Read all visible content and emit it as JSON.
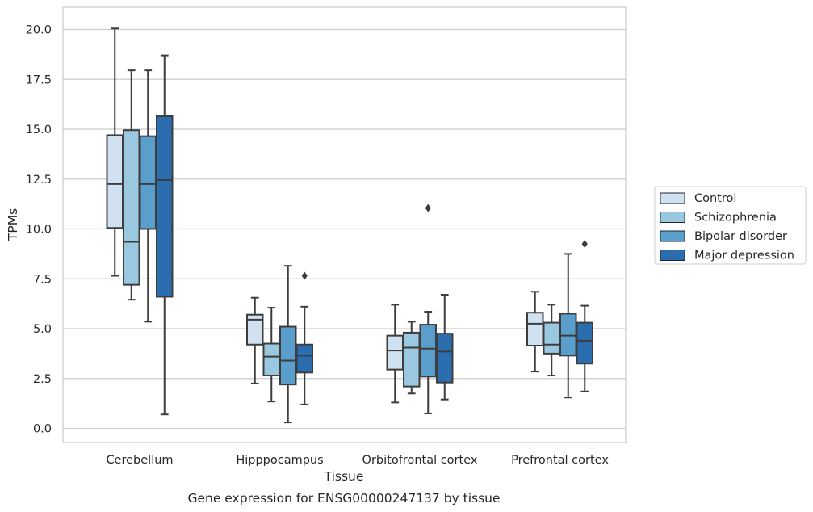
{
  "chart_data": {
    "type": "box",
    "xlabel": "Tissue",
    "ylabel": "TPMs",
    "caption": "Gene expression for ENSG00000247137 by tissue",
    "categories": [
      "Cerebellum",
      "Hipppocampus",
      "Orbitofrontal cortex",
      "Prefrontal cortex"
    ],
    "ylim": [
      -0.65,
      21.1
    ],
    "yticks": [
      "0.0",
      "2.5",
      "5.0",
      "7.5",
      "10.0",
      "12.5",
      "15.0",
      "17.5",
      "20.0"
    ],
    "grid": "horizontal",
    "legend_position": "right",
    "series": [
      {
        "name": "Control",
        "color": "#d0e1f2",
        "boxes": [
          {
            "whisker_low": 7.65,
            "q1": 10.05,
            "median": 12.25,
            "q3": 14.7,
            "whisker_high": 20.05,
            "outliers": []
          },
          {
            "whisker_low": 2.25,
            "q1": 4.2,
            "median": 5.45,
            "q3": 5.7,
            "whisker_high": 6.55,
            "outliers": []
          },
          {
            "whisker_low": 1.3,
            "q1": 2.95,
            "median": 3.9,
            "q3": 4.65,
            "whisker_high": 6.2,
            "outliers": []
          },
          {
            "whisker_low": 2.85,
            "q1": 4.15,
            "median": 5.25,
            "q3": 5.8,
            "whisker_high": 6.85,
            "outliers": []
          }
        ]
      },
      {
        "name": "Schizophrenia",
        "color": "#9ac8e0",
        "boxes": [
          {
            "whisker_low": 6.45,
            "q1": 7.2,
            "median": 9.35,
            "q3": 14.95,
            "whisker_high": 17.95,
            "outliers": []
          },
          {
            "whisker_low": 1.35,
            "q1": 2.65,
            "median": 3.6,
            "q3": 4.25,
            "whisker_high": 6.05,
            "outliers": []
          },
          {
            "whisker_low": 1.75,
            "q1": 2.1,
            "median": 4.05,
            "q3": 4.8,
            "whisker_high": 5.35,
            "outliers": []
          },
          {
            "whisker_low": 2.65,
            "q1": 3.75,
            "median": 4.2,
            "q3": 5.3,
            "whisker_high": 6.2,
            "outliers": []
          }
        ]
      },
      {
        "name": "Bipolar disorder",
        "color": "#5a9ecb",
        "boxes": [
          {
            "whisker_low": 5.35,
            "q1": 10.0,
            "median": 12.25,
            "q3": 14.65,
            "whisker_high": 17.95,
            "outliers": []
          },
          {
            "whisker_low": 0.3,
            "q1": 2.2,
            "median": 3.4,
            "q3": 5.1,
            "whisker_high": 8.15,
            "outliers": []
          },
          {
            "whisker_low": 0.75,
            "q1": 2.6,
            "median": 4.0,
            "q3": 5.2,
            "whisker_high": 5.85,
            "outliers": [
              11.05
            ]
          },
          {
            "whisker_low": 1.55,
            "q1": 3.65,
            "median": 4.65,
            "q3": 5.75,
            "whisker_high": 8.75,
            "outliers": []
          }
        ]
      },
      {
        "name": "Major depression",
        "color": "#2b6eaf",
        "boxes": [
          {
            "whisker_low": 0.7,
            "q1": 6.6,
            "median": 12.45,
            "q3": 15.65,
            "whisker_high": 18.7,
            "outliers": []
          },
          {
            "whisker_low": 1.2,
            "q1": 2.8,
            "median": 3.65,
            "q3": 4.2,
            "whisker_high": 6.1,
            "outliers": [
              7.65
            ]
          },
          {
            "whisker_low": 1.45,
            "q1": 2.3,
            "median": 3.85,
            "q3": 4.75,
            "whisker_high": 6.7,
            "outliers": []
          },
          {
            "whisker_low": 1.85,
            "q1": 3.25,
            "median": 4.4,
            "q3": 5.3,
            "whisker_high": 6.15,
            "outliers": [
              9.25
            ]
          }
        ]
      }
    ]
  }
}
